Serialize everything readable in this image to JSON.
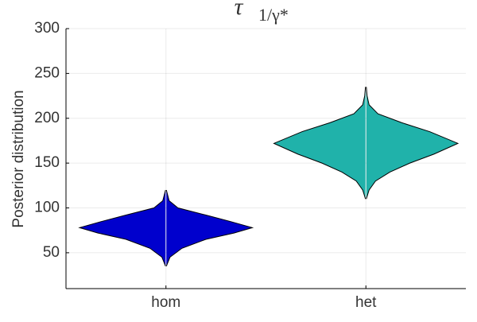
{
  "chart_data": {
    "type": "violin",
    "title": "τ",
    "title_subscript": "1/γ*",
    "ylabel": "Posterior distribution",
    "categories": [
      "hom",
      "het"
    ],
    "series": [
      {
        "name": "hom",
        "color": "#0000cd",
        "y": [
          35,
          45,
          55,
          65,
          72,
          78,
          85,
          92,
          100,
          108,
          120
        ],
        "density": [
          0.5,
          5,
          20,
          50,
          85,
          108,
          80,
          50,
          15,
          4,
          0.5
        ]
      },
      {
        "name": "het",
        "color": "#20b2aa",
        "y": [
          110,
          120,
          130,
          140,
          150,
          160,
          172,
          185,
          195,
          205,
          215,
          225,
          235
        ],
        "density": [
          0.5,
          4,
          12,
          30,
          55,
          85,
          115,
          80,
          45,
          15,
          4,
          1.5,
          0.5
        ]
      }
    ],
    "ylim": [
      10,
      300
    ],
    "yticks": [
      50,
      100,
      150,
      200,
      250,
      300
    ],
    "grid": true
  }
}
